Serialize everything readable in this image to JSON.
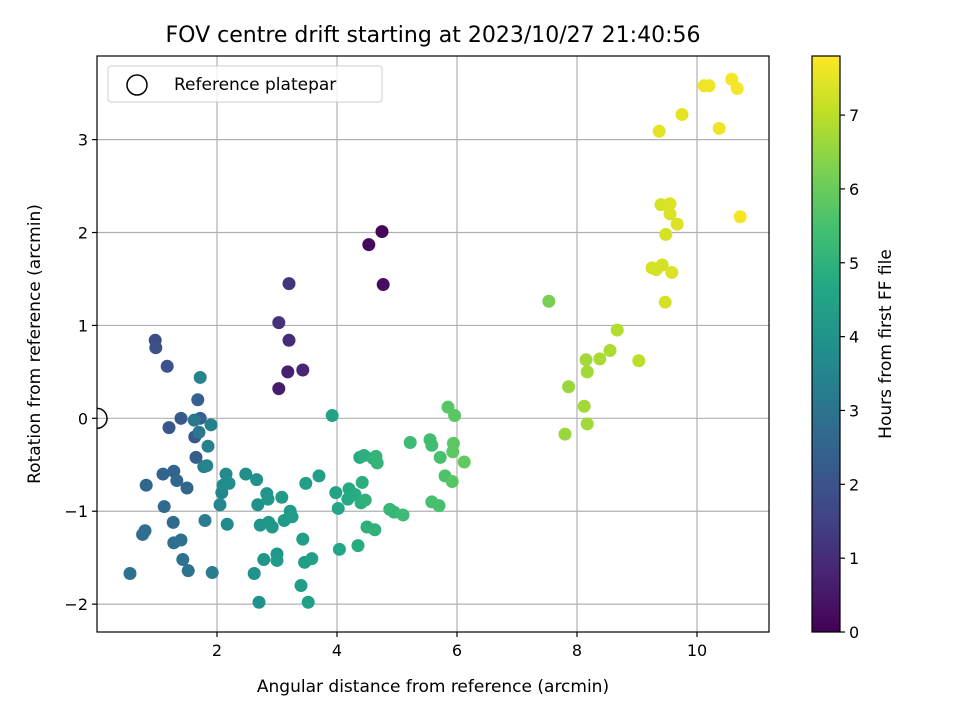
{
  "chart_data": {
    "type": "scatter",
    "title": "FOV centre drift starting at 2023/10/27 21:40:56",
    "xlabel": "Angular distance from reference (arcmin)",
    "ylabel": "Rotation from reference (arcmin)",
    "xlim": [
      0.0,
      11.2
    ],
    "ylim": [
      -2.3,
      3.9
    ],
    "x_ticks": [
      2,
      4,
      6,
      8,
      10
    ],
    "y_ticks": [
      -2,
      -1,
      0,
      1,
      2,
      3
    ],
    "grid": true,
    "legend": {
      "placement": "top-left",
      "entries": [
        "Reference platepar"
      ]
    },
    "reference_point": {
      "x": 0.0,
      "y": 0.0
    },
    "colorbar": {
      "label": "Hours from first FF file",
      "min": 0,
      "max": 7.8,
      "ticks": [
        0,
        1,
        2,
        3,
        4,
        5,
        6,
        7
      ],
      "colormap": "viridis"
    },
    "points": [
      {
        "x": 4.75,
        "y": 2.01,
        "c": 0.1
      },
      {
        "x": 4.53,
        "y": 1.87,
        "c": 0.2
      },
      {
        "x": 4.77,
        "y": 1.44,
        "c": 0.3
      },
      {
        "x": 3.03,
        "y": 0.32,
        "c": 0.6
      },
      {
        "x": 3.18,
        "y": 0.5,
        "c": 0.7
      },
      {
        "x": 3.43,
        "y": 0.52,
        "c": 0.8
      },
      {
        "x": 3.2,
        "y": 0.84,
        "c": 1.0
      },
      {
        "x": 3.03,
        "y": 1.03,
        "c": 1.1
      },
      {
        "x": 3.2,
        "y": 1.45,
        "c": 1.2
      },
      {
        "x": 0.97,
        "y": 0.84,
        "c": 1.8
      },
      {
        "x": 0.98,
        "y": 0.76,
        "c": 1.9
      },
      {
        "x": 1.17,
        "y": 0.56,
        "c": 2.0
      },
      {
        "x": 1.2,
        "y": -0.1,
        "c": 2.1
      },
      {
        "x": 1.4,
        "y": 0.0,
        "c": 2.2
      },
      {
        "x": 1.63,
        "y": -0.2,
        "c": 2.2
      },
      {
        "x": 1.65,
        "y": -0.42,
        "c": 2.3
      },
      {
        "x": 1.68,
        "y": 0.2,
        "c": 2.4
      },
      {
        "x": 1.72,
        "y": 0.0,
        "c": 2.4
      },
      {
        "x": 1.28,
        "y": -0.57,
        "c": 2.5
      },
      {
        "x": 1.1,
        "y": -0.6,
        "c": 2.5
      },
      {
        "x": 1.33,
        "y": -0.67,
        "c": 2.6
      },
      {
        "x": 1.5,
        "y": -0.75,
        "c": 2.6
      },
      {
        "x": 0.82,
        "y": -0.72,
        "c": 2.6
      },
      {
        "x": 1.12,
        "y": -0.95,
        "c": 2.7
      },
      {
        "x": 1.27,
        "y": -1.12,
        "c": 2.7
      },
      {
        "x": 0.8,
        "y": -1.21,
        "c": 2.8
      },
      {
        "x": 0.76,
        "y": -1.25,
        "c": 2.8
      },
      {
        "x": 1.28,
        "y": -1.34,
        "c": 2.8
      },
      {
        "x": 1.4,
        "y": -1.31,
        "c": 2.9
      },
      {
        "x": 0.55,
        "y": -1.67,
        "c": 2.9
      },
      {
        "x": 1.43,
        "y": -1.52,
        "c": 2.9
      },
      {
        "x": 1.52,
        "y": -1.64,
        "c": 3.0
      },
      {
        "x": 1.62,
        "y": -0.02,
        "c": 3.1
      },
      {
        "x": 1.7,
        "y": -0.15,
        "c": 3.1
      },
      {
        "x": 1.78,
        "y": -0.52,
        "c": 3.2
      },
      {
        "x": 1.8,
        "y": -1.1,
        "c": 3.3
      },
      {
        "x": 1.92,
        "y": -1.66,
        "c": 3.3
      },
      {
        "x": 1.9,
        "y": -0.07,
        "c": 3.4
      },
      {
        "x": 1.85,
        "y": -0.3,
        "c": 3.4
      },
      {
        "x": 1.72,
        "y": 0.44,
        "c": 3.5
      },
      {
        "x": 1.83,
        "y": -0.51,
        "c": 3.5
      },
      {
        "x": 2.05,
        "y": -0.93,
        "c": 3.6
      },
      {
        "x": 2.08,
        "y": -0.8,
        "c": 3.6
      },
      {
        "x": 2.1,
        "y": -0.72,
        "c": 3.7
      },
      {
        "x": 2.15,
        "y": -0.6,
        "c": 3.7
      },
      {
        "x": 2.17,
        "y": -1.14,
        "c": 3.7
      },
      {
        "x": 2.2,
        "y": -0.7,
        "c": 3.8
      },
      {
        "x": 2.48,
        "y": -0.6,
        "c": 3.8
      },
      {
        "x": 2.66,
        "y": -0.66,
        "c": 3.9
      },
      {
        "x": 2.68,
        "y": -0.93,
        "c": 3.9
      },
      {
        "x": 2.62,
        "y": -1.67,
        "c": 3.9
      },
      {
        "x": 2.7,
        "y": -1.98,
        "c": 3.9
      },
      {
        "x": 2.72,
        "y": -1.15,
        "c": 4.0
      },
      {
        "x": 2.78,
        "y": -1.52,
        "c": 4.0
      },
      {
        "x": 2.83,
        "y": -0.81,
        "c": 4.0
      },
      {
        "x": 2.85,
        "y": -0.87,
        "c": 4.1
      },
      {
        "x": 2.86,
        "y": -1.12,
        "c": 4.1
      },
      {
        "x": 2.92,
        "y": -1.17,
        "c": 4.1
      },
      {
        "x": 3.0,
        "y": -1.46,
        "c": 4.1
      },
      {
        "x": 3.0,
        "y": -1.53,
        "c": 4.2
      },
      {
        "x": 3.08,
        "y": -0.85,
        "c": 4.2
      },
      {
        "x": 3.12,
        "y": -1.1,
        "c": 4.2
      },
      {
        "x": 3.22,
        "y": -1.0,
        "c": 4.2
      },
      {
        "x": 3.25,
        "y": -1.06,
        "c": 4.3
      },
      {
        "x": 3.4,
        "y": -1.8,
        "c": 4.3
      },
      {
        "x": 3.43,
        "y": -1.3,
        "c": 4.3
      },
      {
        "x": 3.46,
        "y": -1.55,
        "c": 4.3
      },
      {
        "x": 3.48,
        "y": -0.7,
        "c": 4.4
      },
      {
        "x": 3.52,
        "y": -1.98,
        "c": 4.4
      },
      {
        "x": 3.58,
        "y": -1.51,
        "c": 4.4
      },
      {
        "x": 3.7,
        "y": -0.62,
        "c": 4.4
      },
      {
        "x": 3.92,
        "y": 0.03,
        "c": 4.5
      },
      {
        "x": 3.98,
        "y": -0.8,
        "c": 4.5
      },
      {
        "x": 4.02,
        "y": -0.97,
        "c": 4.6
      },
      {
        "x": 4.04,
        "y": -1.41,
        "c": 4.6
      },
      {
        "x": 4.18,
        "y": -0.87,
        "c": 4.7
      },
      {
        "x": 4.2,
        "y": -0.76,
        "c": 4.7
      },
      {
        "x": 4.3,
        "y": -0.82,
        "c": 4.8
      },
      {
        "x": 4.35,
        "y": -1.37,
        "c": 4.8
      },
      {
        "x": 4.38,
        "y": -0.42,
        "c": 4.8
      },
      {
        "x": 4.4,
        "y": -0.91,
        "c": 4.9
      },
      {
        "x": 4.42,
        "y": -0.69,
        "c": 4.9
      },
      {
        "x": 4.45,
        "y": -0.4,
        "c": 4.9
      },
      {
        "x": 4.47,
        "y": -0.88,
        "c": 5.0
      },
      {
        "x": 4.5,
        "y": -1.17,
        "c": 5.0
      },
      {
        "x": 4.6,
        "y": -0.43,
        "c": 5.0
      },
      {
        "x": 4.63,
        "y": -1.2,
        "c": 5.0
      },
      {
        "x": 4.65,
        "y": -0.41,
        "c": 5.1
      },
      {
        "x": 4.67,
        "y": -0.48,
        "c": 5.1
      },
      {
        "x": 4.88,
        "y": -0.98,
        "c": 5.2
      },
      {
        "x": 4.95,
        "y": -1.01,
        "c": 5.2
      },
      {
        "x": 5.1,
        "y": -1.04,
        "c": 5.3
      },
      {
        "x": 5.22,
        "y": -0.26,
        "c": 5.3
      },
      {
        "x": 5.55,
        "y": -0.23,
        "c": 5.4
      },
      {
        "x": 5.58,
        "y": -0.29,
        "c": 5.4
      },
      {
        "x": 5.58,
        "y": -0.9,
        "c": 5.5
      },
      {
        "x": 5.7,
        "y": -0.94,
        "c": 5.5
      },
      {
        "x": 5.72,
        "y": -0.42,
        "c": 5.5
      },
      {
        "x": 5.8,
        "y": -0.62,
        "c": 5.6
      },
      {
        "x": 5.85,
        "y": 0.12,
        "c": 5.7
      },
      {
        "x": 5.92,
        "y": -0.68,
        "c": 5.7
      },
      {
        "x": 5.93,
        "y": -0.36,
        "c": 5.8
      },
      {
        "x": 5.94,
        "y": -0.27,
        "c": 5.8
      },
      {
        "x": 5.96,
        "y": 0.03,
        "c": 5.8
      },
      {
        "x": 6.12,
        "y": -0.47,
        "c": 5.9
      },
      {
        "x": 7.53,
        "y": 1.26,
        "c": 6.2
      },
      {
        "x": 7.8,
        "y": -0.17,
        "c": 6.6
      },
      {
        "x": 7.86,
        "y": 0.34,
        "c": 6.6
      },
      {
        "x": 8.12,
        "y": 0.13,
        "c": 6.7
      },
      {
        "x": 8.15,
        "y": 0.63,
        "c": 6.7
      },
      {
        "x": 8.17,
        "y": 0.5,
        "c": 6.7
      },
      {
        "x": 8.17,
        "y": -0.06,
        "c": 6.7
      },
      {
        "x": 8.38,
        "y": 0.64,
        "c": 6.8
      },
      {
        "x": 8.55,
        "y": 0.73,
        "c": 6.8
      },
      {
        "x": 8.67,
        "y": 0.95,
        "c": 6.9
      },
      {
        "x": 9.03,
        "y": 0.62,
        "c": 7.0
      },
      {
        "x": 9.25,
        "y": 1.62,
        "c": 7.3
      },
      {
        "x": 9.32,
        "y": 1.6,
        "c": 7.3
      },
      {
        "x": 9.4,
        "y": 2.3,
        "c": 7.3
      },
      {
        "x": 9.42,
        "y": 1.65,
        "c": 7.3
      },
      {
        "x": 9.47,
        "y": 1.25,
        "c": 7.3
      },
      {
        "x": 9.48,
        "y": 1.98,
        "c": 7.3
      },
      {
        "x": 9.55,
        "y": 2.31,
        "c": 7.4
      },
      {
        "x": 9.55,
        "y": 2.2,
        "c": 7.4
      },
      {
        "x": 9.58,
        "y": 1.57,
        "c": 7.4
      },
      {
        "x": 9.67,
        "y": 2.09,
        "c": 7.4
      },
      {
        "x": 9.37,
        "y": 3.09,
        "c": 7.5
      },
      {
        "x": 9.75,
        "y": 3.27,
        "c": 7.5
      },
      {
        "x": 10.12,
        "y": 3.58,
        "c": 7.6
      },
      {
        "x": 10.2,
        "y": 3.58,
        "c": 7.6
      },
      {
        "x": 10.37,
        "y": 3.12,
        "c": 7.6
      },
      {
        "x": 10.58,
        "y": 3.65,
        "c": 7.7
      },
      {
        "x": 10.67,
        "y": 3.55,
        "c": 7.7
      },
      {
        "x": 10.72,
        "y": 2.17,
        "c": 7.7
      }
    ]
  }
}
